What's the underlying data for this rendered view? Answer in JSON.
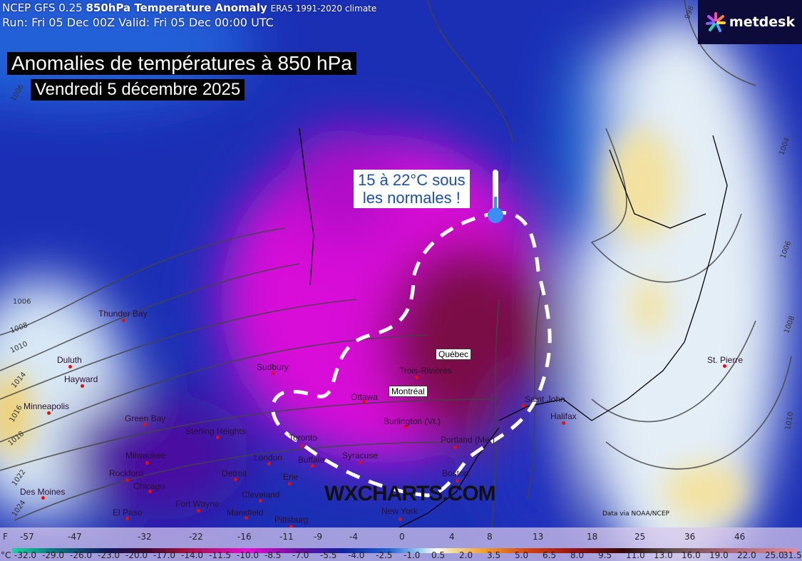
{
  "header": {
    "model": "NCEP GFS 0.25",
    "product": "850hPa Temperature Anomaly",
    "climate": "ERA5 1991-2020 climate",
    "run_line": "Run: Fri 05 Dec 00Z Valid: Fri 05 Dec 00:00 UTC"
  },
  "logo": {
    "text": "metdesk"
  },
  "title": {
    "line1": "Anomalies de températures à 850 hPa",
    "line2": "Vendredi 5 décembre 2025"
  },
  "callout": {
    "line1": "15 à 22°C sous",
    "line2": "les normales !",
    "icon": "thermometer-icon"
  },
  "cities": [
    "Thunder Bay",
    "Duluth",
    "Hayward",
    "Minneapolis",
    "Green Bay",
    "Sterling Heights",
    "Sudbury",
    "Milwaukee",
    "Rockford",
    "Chicago",
    "Des Moines",
    "London",
    "Detroit",
    "Toronto",
    "Buffalo",
    "Erie",
    "Cleveland",
    "Fort Wayne",
    "Mansfield",
    "El Paso",
    "Pittsburg",
    "Ottawa",
    "Trois-Rivières",
    "Burlington (Vt.)",
    "Syracuse",
    "Portland (Me.)",
    "Boston",
    "Saint John",
    "Halifax",
    "St. Pierre",
    "New York"
  ],
  "highlighted_cities": [
    "Québec",
    "Montréal"
  ],
  "isobars": [
    "998",
    "1006",
    "1006",
    "1008",
    "1010",
    "1014",
    "1016",
    "1018",
    "1022",
    "1024",
    "1004",
    "1006",
    "1008",
    "1010"
  ],
  "watermark": "WXCHARTS.COM",
  "credit": "Data via NOAA/NCEP",
  "colorbar": {
    "f_unit": "F",
    "f_ticks": [
      "-57",
      "-47",
      "-32",
      "-22",
      "-16",
      "-11",
      "-9",
      "-4",
      "0",
      "4",
      "8",
      "13",
      "18",
      "25",
      "36",
      "46"
    ],
    "c_unit": "°C",
    "c_ticks": [
      "-32.0",
      "-29.0",
      "-26.0",
      "-23.0",
      "-20.0",
      "-17.0",
      "-14.0",
      "-11.5",
      "-10.0",
      "-8.5",
      "-7.0",
      "-5.5",
      "-4.0",
      "-2.5",
      "-1.0",
      "0.5",
      "2.0",
      "3.5",
      "5.0",
      "6.5",
      "8.0",
      "9.5",
      "11.0",
      "13.0",
      "16.0",
      "19.0",
      "22.0",
      "25.0",
      "31.5"
    ]
  },
  "colors": {
    "cold_core": "#6a0a3a",
    "magenta": "#d60ad6",
    "blue": "#1b2fb5",
    "warm": "#f3e2a0",
    "annotation_dash": "#ffffff"
  }
}
